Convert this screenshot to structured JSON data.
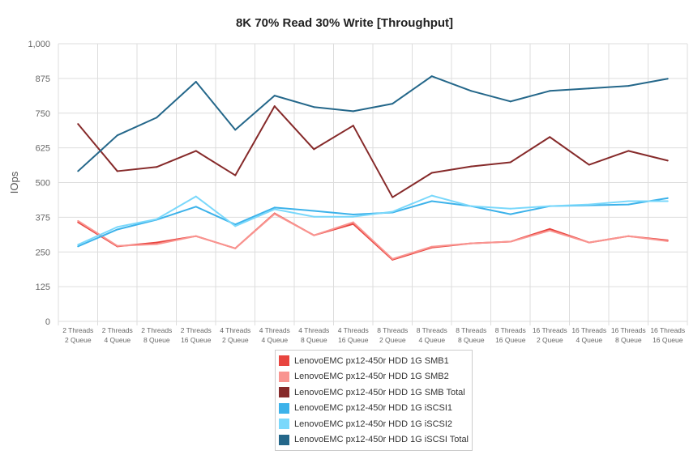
{
  "chart_data": {
    "type": "line",
    "title": "8K 70% Read 30% Write [Throughput]",
    "xlabel": "",
    "ylabel": "IOps",
    "ylim": [
      0,
      1000
    ],
    "yticks": [
      "0",
      "125",
      "250",
      "375",
      "500",
      "625",
      "750",
      "875",
      "1,000"
    ],
    "ytick_values": [
      0,
      125,
      250,
      375,
      500,
      625,
      750,
      875,
      1000
    ],
    "grid": true,
    "legend_position": "bottom",
    "categories": [
      [
        "2 Threads",
        "2 Queue"
      ],
      [
        "2 Threads",
        "4 Queue"
      ],
      [
        "2 Threads",
        "8 Queue"
      ],
      [
        "2 Threads",
        "16 Queue"
      ],
      [
        "4 Threads",
        "2 Queue"
      ],
      [
        "4 Threads",
        "4 Queue"
      ],
      [
        "4 Threads",
        "8 Queue"
      ],
      [
        "4 Threads",
        "16 Queue"
      ],
      [
        "8 Threads",
        "2 Queue"
      ],
      [
        "8 Threads",
        "4 Queue"
      ],
      [
        "8 Threads",
        "8 Queue"
      ],
      [
        "8 Threads",
        "16 Queue"
      ],
      [
        "16 Threads",
        "2 Queue"
      ],
      [
        "16 Threads",
        "4 Queue"
      ],
      [
        "16 Threads",
        "8 Queue"
      ],
      [
        "16 Threads",
        "16 Queue"
      ]
    ],
    "series": [
      {
        "name": "LenovoEMC px12-450r HDD 1G SMB1",
        "color": "#e8453f",
        "values": [
          357,
          270,
          284,
          307,
          263,
          389,
          310,
          351,
          222,
          266,
          281,
          287,
          333,
          284,
          307,
          292
        ]
      },
      {
        "name": "LenovoEMC px12-450r HDD 1G SMB2",
        "color": "#f99490",
        "values": [
          362,
          272,
          278,
          307,
          263,
          387,
          310,
          357,
          225,
          269,
          281,
          287,
          327,
          284,
          307,
          289
        ]
      },
      {
        "name": "LenovoEMC px12-450r HDD 1G SMB Total",
        "color": "#862a2a",
        "values": [
          711,
          541,
          556,
          614,
          526,
          775,
          620,
          705,
          447,
          535,
          558,
          573,
          664,
          564,
          614,
          579
        ]
      },
      {
        "name": "LenovoEMC px12-450r HDD 1G iSCSI1",
        "color": "#3cb2ea",
        "values": [
          270,
          331,
          366,
          413,
          349,
          410,
          398,
          385,
          392,
          433,
          415,
          386,
          415,
          418,
          421,
          444
        ]
      },
      {
        "name": "LenovoEMC px12-450r HDD 1G iSCSI2",
        "color": "#7ad8fb",
        "values": [
          276,
          340,
          368,
          450,
          343,
          404,
          377,
          377,
          395,
          453,
          415,
          406,
          415,
          421,
          433,
          433
        ]
      },
      {
        "name": "LenovoEMC px12-450r HDD 1G iSCSI Total",
        "color": "#24678a",
        "values": [
          541,
          670,
          734,
          863,
          690,
          813,
          772,
          757,
          784,
          883,
          830,
          792,
          830,
          839,
          848,
          874
        ]
      }
    ]
  }
}
